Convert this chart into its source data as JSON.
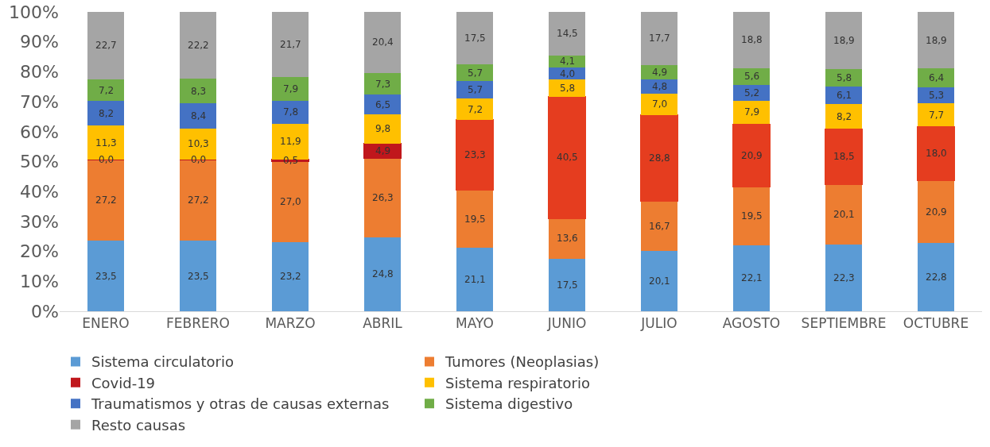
{
  "chart_data": {
    "type": "bar",
    "stacked": true,
    "categories": [
      "ENERO",
      "FEBRERO",
      "MARZO",
      "ABRIL",
      "MAYO",
      "JUNIO",
      "JULIO",
      "AGOSTO",
      "SEPTIEMBRE",
      "OCTUBRE"
    ],
    "ylim": [
      0,
      100
    ],
    "yticks": [
      {
        "value": 0,
        "label": "0%"
      },
      {
        "value": 10,
        "label": "10%"
      },
      {
        "value": 20,
        "label": "20%"
      },
      {
        "value": 30,
        "label": "30%"
      },
      {
        "value": 40,
        "label": "40%"
      },
      {
        "value": 50,
        "label": "50%"
      },
      {
        "value": 60,
        "label": "60%"
      },
      {
        "value": 70,
        "label": "70%"
      },
      {
        "value": 80,
        "label": "80%"
      },
      {
        "value": 90,
        "label": "90%"
      },
      {
        "value": 100,
        "label": "100%"
      }
    ],
    "grid": false,
    "legend": "bottom",
    "series": [
      {
        "name": "Sistema circulatorio",
        "color": "#5b9bd5",
        "values": [
          23.5,
          23.5,
          23.2,
          24.8,
          21.1,
          17.5,
          20.1,
          22.1,
          22.3,
          22.8
        ],
        "value_labels": [
          "23,5",
          "23,5",
          "23,2",
          "24,8",
          "21,1",
          "17,5",
          "20,1",
          "22,1",
          "22,3",
          "22,8"
        ]
      },
      {
        "name": "Tumores (Neoplasias)",
        "color": "#ed7d31",
        "values": [
          27.2,
          27.2,
          27.0,
          26.3,
          19.5,
          13.6,
          16.7,
          19.5,
          20.1,
          20.9
        ],
        "value_labels": [
          "27,2",
          "27,2",
          "27,0",
          "26,3",
          "19,5",
          "13,6",
          "16,7",
          "19,5",
          "20,1",
          "20,9"
        ]
      },
      {
        "name": "Covid-19",
        "color": "#c0171c",
        "colors": [
          "#c0171c",
          "#c0171c",
          "#c0171c",
          "#c0171c",
          "#e53d1f",
          "#e53d1f",
          "#e53d1f",
          "#e53d1f",
          "#e53d1f",
          "#e53d1f"
        ],
        "values": [
          0.0,
          0.0,
          0.5,
          4.9,
          23.3,
          40.5,
          28.8,
          20.9,
          18.5,
          18.0
        ],
        "value_labels": [
          "0,0",
          "0,0",
          "0,5",
          "4,9",
          "23,3",
          "40,5",
          "28,8",
          "20,9",
          "18,5",
          "18,0"
        ]
      },
      {
        "name": "Sistema respiratorio",
        "color": "#ffc000",
        "values": [
          11.3,
          10.3,
          11.9,
          9.8,
          7.2,
          5.8,
          7.0,
          7.9,
          8.2,
          7.7
        ],
        "value_labels": [
          "11,3",
          "10,3",
          "11,9",
          "9,8",
          "7,2",
          "5,8",
          "7,0",
          "7,9",
          "8,2",
          "7,7"
        ]
      },
      {
        "name": "Traumatismos y otras de causas externas",
        "color": "#4472c4",
        "values": [
          8.2,
          8.4,
          7.8,
          6.5,
          5.7,
          4.0,
          4.8,
          5.2,
          6.1,
          5.3
        ],
        "value_labels": [
          "8,2",
          "8,4",
          "7,8",
          "6,5",
          "5,7",
          "4,0",
          "4,8",
          "5,2",
          "6,1",
          "5,3"
        ]
      },
      {
        "name": "Sistema digestivo",
        "color": "#70ad47",
        "values": [
          7.2,
          8.3,
          7.9,
          7.3,
          5.7,
          4.1,
          4.9,
          5.6,
          5.8,
          6.4
        ],
        "value_labels": [
          "7,2",
          "8,3",
          "7,9",
          "7,3",
          "5,7",
          "4,1",
          "4,9",
          "5,6",
          "5,8",
          "6,4"
        ]
      },
      {
        "name": "Resto causas",
        "color": "#a5a5a5",
        "values": [
          22.7,
          22.2,
          21.7,
          20.4,
          17.5,
          14.5,
          17.7,
          18.8,
          18.9,
          18.9
        ],
        "value_labels": [
          "22,7",
          "22,2",
          "21,7",
          "20,4",
          "17,5",
          "14,5",
          "17,7",
          "18,8",
          "18,9",
          "18,9"
        ]
      }
    ]
  }
}
